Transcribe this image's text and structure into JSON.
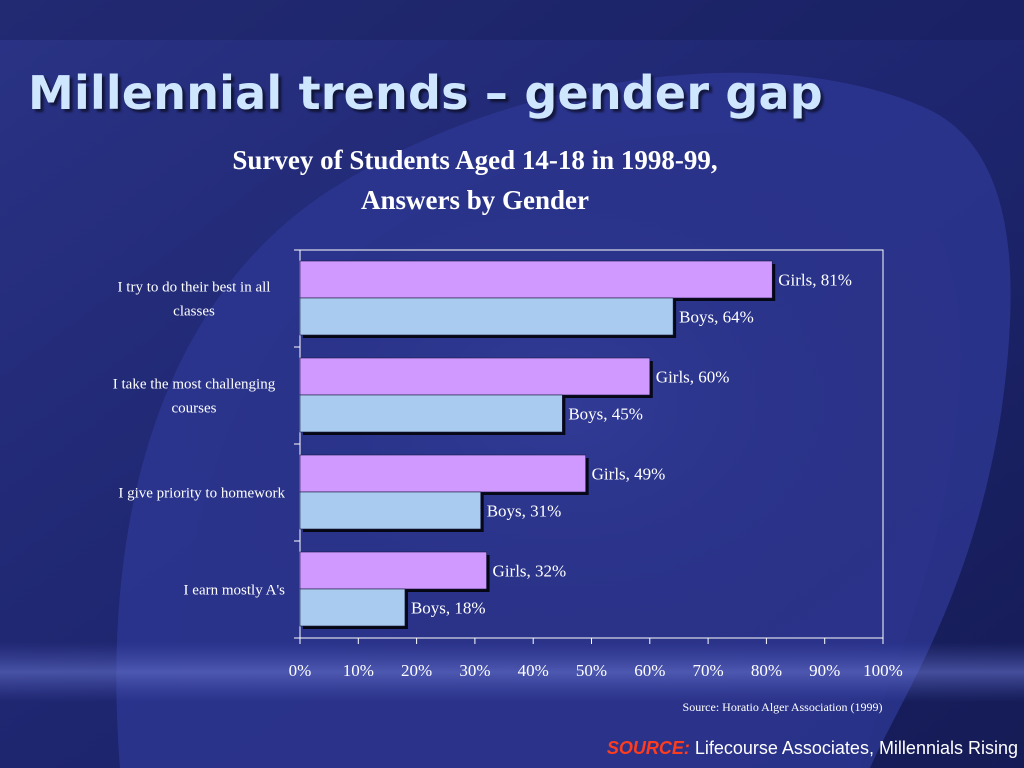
{
  "slide": {
    "title": "Millennial trends – gender gap",
    "source_label": "SOURCE:",
    "source_text": "Lifecourse Associates, Millennials Rising"
  },
  "colors": {
    "girls": "#cf99ff",
    "boys": "#a9cbef",
    "accent": "#ff3c1e",
    "title": "#cfe6ff"
  },
  "chart_data": {
    "type": "bar",
    "orientation": "horizontal",
    "title_line1": "Survey of Students Aged 14-18 in 1998-99,",
    "title_line2": "Answers by Gender",
    "note": "Source: Horatio Alger Association (1999)",
    "categories": [
      "I try to do their best in all classes",
      "I take the most challenging courses",
      "I give priority to homework",
      "I earn mostly A's"
    ],
    "series": [
      {
        "name": "Girls",
        "values": [
          81,
          60,
          49,
          32
        ]
      },
      {
        "name": "Boys",
        "values": [
          64,
          45,
          31,
          18
        ]
      }
    ],
    "data_labels": [
      [
        "Girls, 81%",
        "Girls, 60%",
        "Girls, 49%",
        "Girls, 32%"
      ],
      [
        "Boys, 64%",
        "Boys, 45%",
        "Boys, 31%",
        "Boys, 18%"
      ]
    ],
    "xlim": [
      0,
      100
    ],
    "xticks": [
      "0%",
      "10%",
      "20%",
      "30%",
      "40%",
      "50%",
      "60%",
      "70%",
      "80%",
      "90%",
      "100%"
    ],
    "grid": false,
    "legend": "none"
  }
}
